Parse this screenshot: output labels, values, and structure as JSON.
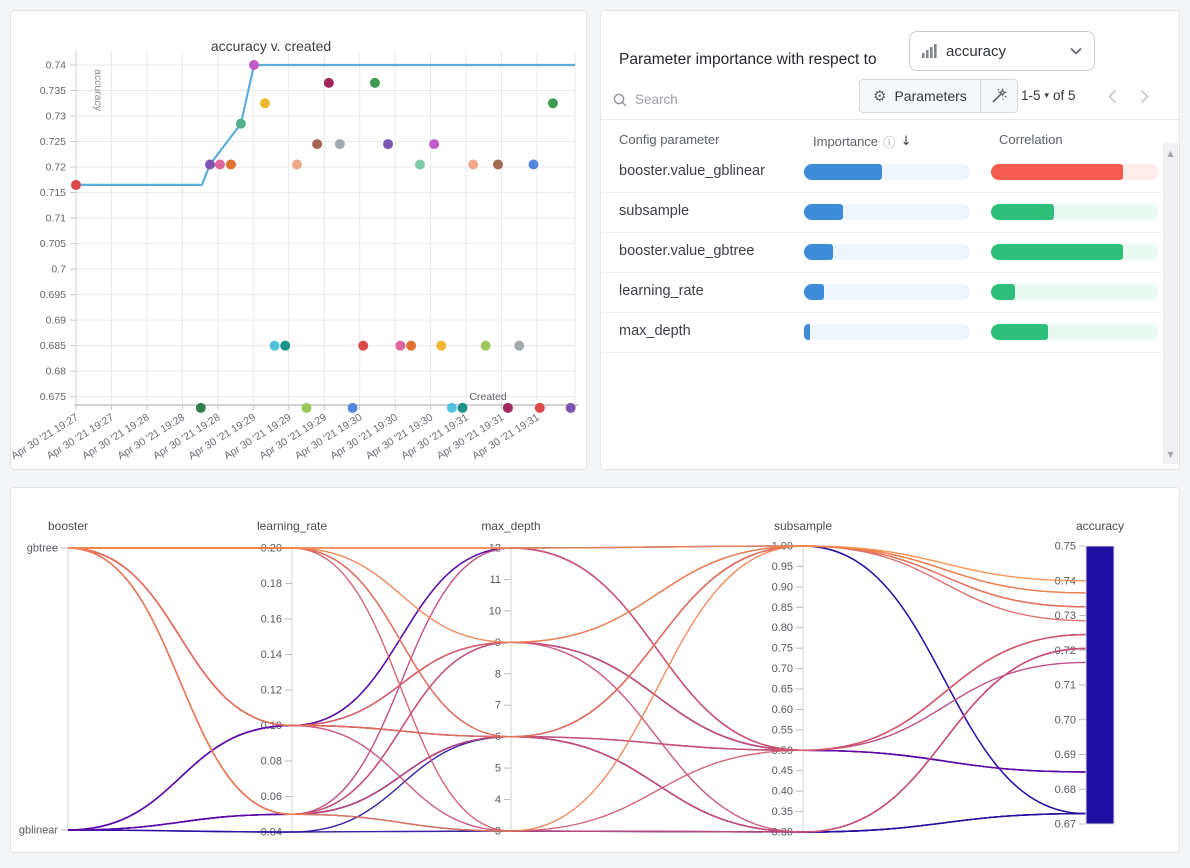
{
  "colors": {
    "page_bg": "#f4f5f6",
    "importance_fill": "#3E8BD8",
    "importance_track": "#EFF5FB",
    "correlation_positive": "#2EBE7B",
    "correlation_positive_track": "#EAF8F2",
    "correlation_negative": "#F45B4F",
    "correlation_negative_track": "#FDEDEC",
    "max_line": "#5BAFD6"
  },
  "panels": {
    "importance": {
      "title": "Parameter importance with respect to",
      "metric_selector": {
        "icon": "bar-chart-icon",
        "value": "accuracy"
      },
      "search_placeholder": "Search",
      "parameters_button": "Parameters",
      "pagination": {
        "range": "1-5",
        "of": "of 5"
      },
      "columns": {
        "parameter": "Config parameter",
        "importance": "Importance",
        "correlation": "Correlation"
      },
      "rows": [
        {
          "name": "booster.value_gblinear",
          "importance": 0.47,
          "correlation": 0.79,
          "correlation_color": "red"
        },
        {
          "name": "subsample",
          "importance": 0.235,
          "correlation": 0.38,
          "correlation_color": "green"
        },
        {
          "name": "booster.value_gbtree",
          "importance": 0.175,
          "correlation": 0.79,
          "correlation_color": "green"
        },
        {
          "name": "learning_rate",
          "importance": 0.12,
          "correlation": 0.145,
          "correlation_color": "green"
        },
        {
          "name": "max_depth",
          "importance": 0.036,
          "correlation": 0.34,
          "correlation_color": "green"
        }
      ]
    }
  },
  "chart_data": [
    {
      "id": "scatter",
      "type": "scatter",
      "title": "accuracy v. created",
      "xlabel": "Created",
      "ylabel": "accuracy",
      "x_tick_labels": [
        "Apr 30 '21 19:27",
        "Apr 30 '21 19:27",
        "Apr 30 '21 19:28",
        "Apr 30 '21 19:28",
        "Apr 30 '21 19:28",
        "Apr 30 '21 19:29",
        "Apr 30 '21 19:29",
        "Apr 30 '21 19:29",
        "Apr 30 '21 19:30",
        "Apr 30 '21 19:30",
        "Apr 30 '21 19:30",
        "Apr 30 '21 19:31",
        "Apr 30 '21 19:31",
        "Apr 30 '21 19:31"
      ],
      "y_ticks": [
        "0.675",
        "0.68",
        "0.685",
        "0.69",
        "0.695",
        "0.7",
        "0.705",
        "0.71",
        "0.715",
        "0.72",
        "0.725",
        "0.73",
        "0.735",
        "0.74"
      ],
      "ylim": [
        0.672,
        0.742
      ],
      "points": [
        {
          "x": 0.0,
          "y": 0.7165,
          "c": "#D9494A"
        },
        {
          "x": 3.78,
          "y": 0.7205,
          "c": "#7D54B2"
        },
        {
          "x": 4.06,
          "y": 0.7205,
          "c": "#E0679E"
        },
        {
          "x": 4.37,
          "y": 0.7205,
          "c": "#E2702F"
        },
        {
          "x": 4.65,
          "y": 0.7285,
          "c": "#4FB08C"
        },
        {
          "x": 5.02,
          "y": 0.74,
          "c": "#C45AC9"
        },
        {
          "x": 5.33,
          "y": 0.7325,
          "c": "#EDB732"
        },
        {
          "x": 6.23,
          "y": 0.7205,
          "c": "#EDA687"
        },
        {
          "x": 6.8,
          "y": 0.7245,
          "c": "#A46750"
        },
        {
          "x": 7.13,
          "y": 0.7365,
          "c": "#A3265C"
        },
        {
          "x": 7.44,
          "y": 0.7245,
          "c": "#A1A9AD"
        },
        {
          "x": 8.43,
          "y": 0.7365,
          "c": "#3F9A54"
        },
        {
          "x": 8.8,
          "y": 0.7245,
          "c": "#7D54B2"
        },
        {
          "x": 9.7,
          "y": 0.7205,
          "c": "#7DC9A8"
        },
        {
          "x": 10.1,
          "y": 0.7245,
          "c": "#C45AC9"
        },
        {
          "x": 11.2,
          "y": 0.7205,
          "c": "#EDA687"
        },
        {
          "x": 11.9,
          "y": 0.7205,
          "c": "#A46750"
        },
        {
          "x": 12.9,
          "y": 0.7205,
          "c": "#5387DD"
        },
        {
          "x": 13.45,
          "y": 0.7325,
          "c": "#3F9A54"
        },
        {
          "x": 5.6,
          "y": 0.685,
          "c": "#53C2DC"
        },
        {
          "x": 5.9,
          "y": 0.685,
          "c": "#1B9388"
        },
        {
          "x": 8.1,
          "y": 0.685,
          "c": "#D9494A"
        },
        {
          "x": 9.15,
          "y": 0.685,
          "c": "#E0679E"
        },
        {
          "x": 9.45,
          "y": 0.685,
          "c": "#E2702F"
        },
        {
          "x": 10.3,
          "y": 0.685,
          "c": "#EDB732"
        },
        {
          "x": 11.55,
          "y": 0.685,
          "c": "#A0C75C"
        },
        {
          "x": 12.5,
          "y": 0.685,
          "c": "#A1A9AD"
        },
        {
          "x": 3.52,
          "y": 0.6728,
          "c": "#2F7E4E"
        },
        {
          "x": 6.5,
          "y": 0.6728,
          "c": "#A0C75C"
        },
        {
          "x": 7.8,
          "y": 0.6728,
          "c": "#5387DD"
        },
        {
          "x": 10.6,
          "y": 0.6728,
          "c": "#53C2DC"
        },
        {
          "x": 10.9,
          "y": 0.6728,
          "c": "#1B9388"
        },
        {
          "x": 12.18,
          "y": 0.6728,
          "c": "#A3265C"
        },
        {
          "x": 13.08,
          "y": 0.6728,
          "c": "#D9494A"
        },
        {
          "x": 13.95,
          "y": 0.6728,
          "c": "#7D54B2"
        }
      ],
      "max_line": {
        "color": "#5BAFD6",
        "points": [
          [
            0,
            0.7165
          ],
          [
            3.55,
            0.7165
          ],
          [
            3.78,
            0.7205
          ],
          [
            4.65,
            0.7285
          ],
          [
            5.02,
            0.74
          ],
          [
            14.08,
            0.74
          ]
        ]
      }
    },
    {
      "id": "parameter-importance",
      "type": "table",
      "columns": [
        "Config parameter",
        "Importance",
        "Correlation"
      ],
      "rows": [
        [
          "booster.value_gblinear",
          0.47,
          -0.79
        ],
        [
          "subsample",
          0.235,
          0.38
        ],
        [
          "booster.value_gbtree",
          0.175,
          0.79
        ],
        [
          "learning_rate",
          0.12,
          0.145
        ],
        [
          "max_depth",
          0.036,
          0.34
        ]
      ]
    },
    {
      "id": "parallel-coordinates",
      "type": "parallel",
      "axes": [
        {
          "name": "booster",
          "kind": "cat",
          "categories": [
            "gbtree",
            "gblinear"
          ]
        },
        {
          "name": "learning_rate",
          "kind": "num",
          "min": 0.04,
          "max": 0.2,
          "ticks": [
            "0.04",
            "0.06",
            "0.08",
            "0.10",
            "0.12",
            "0.14",
            "0.16",
            "0.18",
            "0.20"
          ]
        },
        {
          "name": "max_depth",
          "kind": "num",
          "min": 3,
          "max": 12,
          "ticks": [
            "3",
            "4",
            "5",
            "6",
            "7",
            "8",
            "9",
            "10",
            "11",
            "12"
          ]
        },
        {
          "name": "subsample",
          "kind": "num",
          "min": 0.3,
          "max": 1.0,
          "ticks": [
            "0.30",
            "0.35",
            "0.40",
            "0.45",
            "0.50",
            "0.55",
            "0.60",
            "0.65",
            "0.70",
            "0.75",
            "0.80",
            "0.85",
            "0.90",
            "0.95",
            "1.00"
          ]
        },
        {
          "name": "accuracy",
          "kind": "num",
          "min": 0.67,
          "max": 0.75,
          "ticks": [
            "0.67",
            "0.68",
            "0.69",
            "0.70",
            "0.71",
            "0.72",
            "0.73",
            "0.74",
            "0.75"
          ],
          "colorbar": true
        }
      ],
      "colormap": [
        [
          0.0,
          "#1e0ea1"
        ],
        [
          0.1,
          "#3a0d9e"
        ],
        [
          0.22,
          "#6b08ab"
        ],
        [
          0.35,
          "#8b0aa5"
        ],
        [
          0.48,
          "#a62b90"
        ],
        [
          0.58,
          "#bc417e"
        ],
        [
          0.68,
          "#d0586c"
        ],
        [
          0.78,
          "#e4715a"
        ],
        [
          0.88,
          "#f58f46"
        ],
        [
          0.95,
          "#fbaa36"
        ],
        [
          1.0,
          "#fcc52a"
        ]
      ],
      "runs": [
        {
          "booster": "gbtree",
          "learning_rate": 0.2,
          "max_depth": 12,
          "subsample": 1.0,
          "accuracy": 0.74
        },
        {
          "booster": "gbtree",
          "learning_rate": 0.05,
          "max_depth": 3,
          "subsample": 1.0,
          "accuracy": 0.7365
        },
        {
          "booster": "gbtree",
          "learning_rate": 0.2,
          "max_depth": 9,
          "subsample": 1.0,
          "accuracy": 0.7365
        },
        {
          "booster": "gbtree",
          "learning_rate": 0.1,
          "max_depth": 6,
          "subsample": 1.0,
          "accuracy": 0.7325
        },
        {
          "booster": "gbtree",
          "learning_rate": 0.2,
          "max_depth": 6,
          "subsample": 1.0,
          "accuracy": 0.7325
        },
        {
          "booster": "gbtree",
          "learning_rate": 0.1,
          "max_depth": 9,
          "subsample": 1.0,
          "accuracy": 0.7285
        },
        {
          "booster": "gbtree",
          "learning_rate": 0.2,
          "max_depth": 12,
          "subsample": 0.5,
          "accuracy": 0.7245
        },
        {
          "booster": "gbtree",
          "learning_rate": 0.1,
          "max_depth": 6,
          "subsample": 0.5,
          "accuracy": 0.7245
        },
        {
          "booster": "gbtree",
          "learning_rate": 0.05,
          "max_depth": 9,
          "subsample": 0.5,
          "accuracy": 0.7245
        },
        {
          "booster": "gbtree",
          "learning_rate": 0.2,
          "max_depth": 3,
          "subsample": 0.5,
          "accuracy": 0.7245
        },
        {
          "booster": "gbtree",
          "learning_rate": 0.1,
          "max_depth": 9,
          "subsample": 0.3,
          "accuracy": 0.7205
        },
        {
          "booster": "gbtree",
          "learning_rate": 0.05,
          "max_depth": 6,
          "subsample": 0.3,
          "accuracy": 0.7205
        },
        {
          "booster": "gbtree",
          "learning_rate": 0.2,
          "max_depth": 6,
          "subsample": 0.3,
          "accuracy": 0.7205
        },
        {
          "booster": "gbtree",
          "learning_rate": 0.1,
          "max_depth": 3,
          "subsample": 0.3,
          "accuracy": 0.7205
        },
        {
          "booster": "gbtree",
          "learning_rate": 0.05,
          "max_depth": 12,
          "subsample": 0.5,
          "accuracy": 0.7165
        },
        {
          "booster": "gblinear",
          "learning_rate": 0.1,
          "max_depth": 12,
          "subsample": 0.5,
          "accuracy": 0.685
        },
        {
          "booster": "gblinear",
          "learning_rate": 0.1,
          "max_depth": 9,
          "subsample": 0.5,
          "accuracy": 0.685
        },
        {
          "booster": "gblinear",
          "learning_rate": 0.05,
          "max_depth": 9,
          "subsample": 0.5,
          "accuracy": 0.685
        },
        {
          "booster": "gblinear",
          "learning_rate": 0.05,
          "max_depth": 6,
          "subsample": 0.5,
          "accuracy": 0.685
        },
        {
          "booster": "gblinear",
          "learning_rate": 0.1,
          "max_depth": 12,
          "subsample": 1.0,
          "accuracy": 0.673
        },
        {
          "booster": "gblinear",
          "learning_rate": 0.05,
          "max_depth": 6,
          "subsample": 1.0,
          "accuracy": 0.673
        },
        {
          "booster": "gblinear",
          "learning_rate": 0.04,
          "max_depth": 3,
          "subsample": 0.3,
          "accuracy": 0.673
        },
        {
          "booster": "gblinear",
          "learning_rate": 0.05,
          "max_depth": 3,
          "subsample": 0.3,
          "accuracy": 0.673
        },
        {
          "booster": "gblinear",
          "learning_rate": 0.04,
          "max_depth": 6,
          "subsample": 0.3,
          "accuracy": 0.673
        },
        {
          "booster": "gblinear",
          "learning_rate": 0.1,
          "max_depth": 6,
          "subsample": 0.3,
          "accuracy": 0.673
        }
      ]
    }
  ]
}
